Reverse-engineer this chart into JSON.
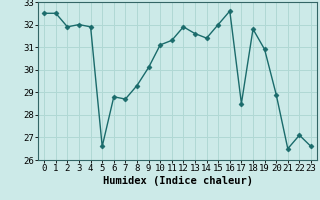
{
  "x": [
    0,
    1,
    2,
    3,
    4,
    5,
    6,
    7,
    8,
    9,
    10,
    11,
    12,
    13,
    14,
    15,
    16,
    17,
    18,
    19,
    20,
    21,
    22,
    23
  ],
  "y": [
    32.5,
    32.5,
    31.9,
    32.0,
    31.9,
    26.6,
    28.8,
    28.7,
    29.3,
    30.1,
    31.1,
    31.3,
    31.9,
    31.6,
    31.4,
    32.0,
    32.6,
    28.5,
    31.8,
    30.9,
    28.9,
    26.5,
    27.1,
    26.6
  ],
  "line_color": "#1a6b6b",
  "marker": "D",
  "marker_size": 2.5,
  "bg_color": "#cceae8",
  "grid_color": "#b0d8d4",
  "xlabel": "Humidex (Indice chaleur)",
  "ylim": [
    26,
    33
  ],
  "xlim": [
    -0.5,
    23.5
  ],
  "yticks": [
    26,
    27,
    28,
    29,
    30,
    31,
    32,
    33
  ],
  "xticks": [
    0,
    1,
    2,
    3,
    4,
    5,
    6,
    7,
    8,
    9,
    10,
    11,
    12,
    13,
    14,
    15,
    16,
    17,
    18,
    19,
    20,
    21,
    22,
    23
  ],
  "xtick_labels": [
    "0",
    "1",
    "2",
    "3",
    "4",
    "5",
    "6",
    "7",
    "8",
    "9",
    "10",
    "11",
    "12",
    "13",
    "14",
    "15",
    "16",
    "17",
    "18",
    "19",
    "20",
    "21",
    "22",
    "23"
  ],
  "xlabel_fontsize": 7.5,
  "tick_fontsize": 6.5,
  "line_width": 1.0
}
